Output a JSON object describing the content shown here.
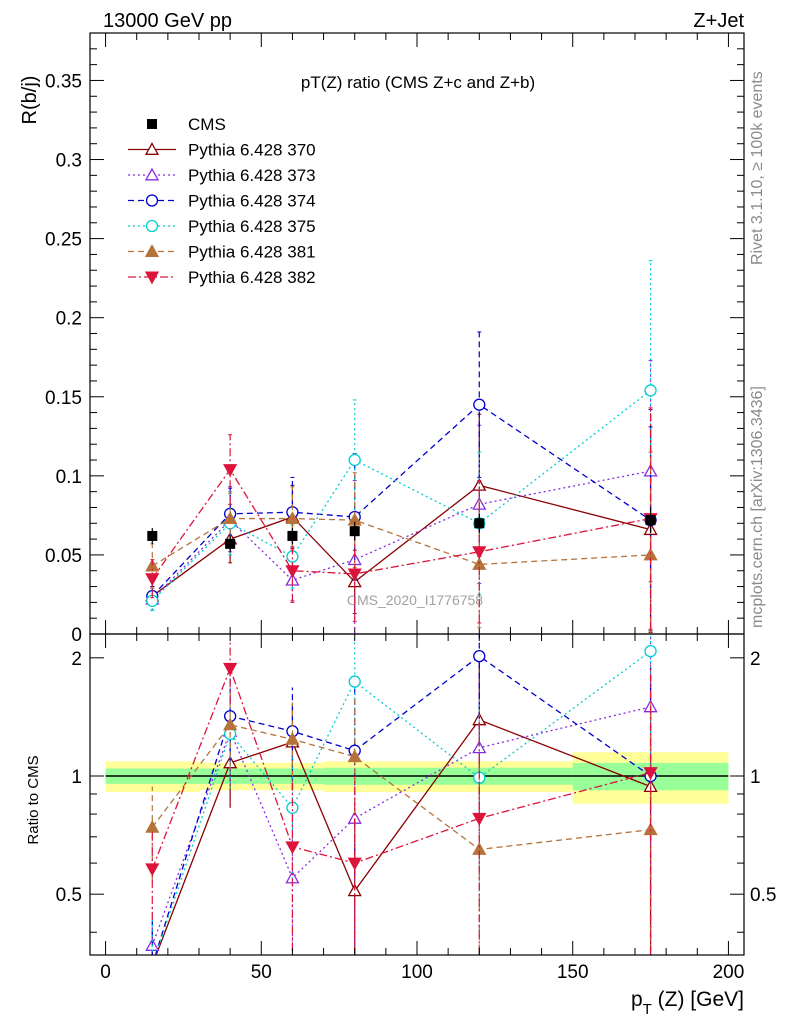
{
  "header": {
    "energy": "13000 GeV pp",
    "process": "Z+Jet",
    "title": "pT(Z) ratio (CMS  Z+c and Z+b)",
    "watermark": "CMS_2020_I1776758",
    "rivet": "Rivet 3.1.10, ≥ 100k events",
    "mcplots": "mcplots.cern.ch [arXiv:1306.3436]"
  },
  "chart_data": [
    {
      "type": "scatter",
      "panel": "main",
      "ylabel": "R(b/j)",
      "ylim": [
        0,
        0.38
      ],
      "yticks": [
        0,
        0.05,
        0.1,
        0.15,
        0.2,
        0.25,
        0.3,
        0.35
      ],
      "ytick_labels": [
        "0",
        "0.05",
        "0.1",
        "0.15",
        "0.2",
        "0.25",
        "0.3",
        "0.35"
      ],
      "xlim": [
        -5,
        205
      ],
      "x": [
        15,
        40,
        60,
        80,
        120,
        175
      ],
      "data": {
        "name": "CMS",
        "y": [
          0.062,
          0.057,
          0.062,
          0.065,
          0.07,
          0.072
        ],
        "err": [
          0.005,
          0.005,
          0.005,
          0.006,
          0.006,
          0.008
        ]
      },
      "series": [
        {
          "name": "Pythia 6.428 370",
          "color": "#8b0000",
          "marker": "triangle-up-open",
          "dash": "solid",
          "y": [
            0.024,
            0.06,
            0.074,
            0.033,
            0.094,
            0.066
          ],
          "err": [
            0.006,
            0.015,
            0.02,
            0.02,
            0.045,
            0.065
          ]
        },
        {
          "name": "Pythia 6.428 373",
          "color": "#8a2be2",
          "marker": "triangle-up-open",
          "dash": "dotted",
          "y": [
            0.022,
            0.072,
            0.034,
            0.047,
            0.082,
            0.103
          ],
          "err": [
            0.007,
            0.02,
            0.013,
            0.05,
            0.05,
            0.07
          ]
        },
        {
          "name": "Pythia 6.428 374",
          "color": "#0000cd",
          "marker": "circle-open",
          "dash": "dashed",
          "y": [
            0.024,
            0.076,
            0.077,
            0.074,
            0.145,
            0.072
          ],
          "err": [
            0.006,
            0.017,
            0.022,
            0.04,
            0.046,
            0.07
          ]
        },
        {
          "name": "Pythia 6.428 375",
          "color": "#00ced1",
          "marker": "circle-open",
          "dash": "dotted",
          "y": [
            0.021,
            0.07,
            0.049,
            0.11,
            0.07,
            0.154
          ],
          "err": [
            0.006,
            0.02,
            0.02,
            0.038,
            0.045,
            0.082
          ]
        },
        {
          "name": "Pythia 6.428 381",
          "color": "#b5733a",
          "marker": "triangle-up-filled",
          "dash": "dashed",
          "y": [
            0.043,
            0.073,
            0.073,
            0.072,
            0.044,
            0.05
          ],
          "err": [
            0.014,
            0.016,
            0.02,
            0.03,
            0.04,
            0.065
          ]
        },
        {
          "name": "Pythia 6.428 382",
          "color": "#dc143c",
          "marker": "triangle-down-filled",
          "dash": "dashdot",
          "y": [
            0.035,
            0.104,
            0.04,
            0.038,
            0.052,
            0.073
          ],
          "err": [
            0.012,
            0.022,
            0.02,
            0.03,
            0.045,
            0.07
          ]
        }
      ]
    },
    {
      "type": "scatter",
      "panel": "ratio",
      "ylabel": "Ratio to CMS",
      "ylim": [
        0.35,
        2.3
      ],
      "yticks": [
        0.5,
        1,
        2
      ],
      "ytick_labels": [
        "0.5",
        "1",
        "2"
      ],
      "xlabel_main": "p",
      "xlabel_sub": "T",
      "xlabel_rest": " (Z) [GeV]",
      "xlim": [
        -5,
        205
      ],
      "xticks": [
        0,
        50,
        100,
        150,
        200
      ],
      "xtick_labels": [
        "0",
        "50",
        "100",
        "150",
        "200"
      ],
      "bands": [
        {
          "x0": 0,
          "x1": 30,
          "inner": 0.045,
          "outer": 0.09
        },
        {
          "x0": 30,
          "x1": 50,
          "inner": 0.045,
          "outer": 0.08
        },
        {
          "x0": 50,
          "x1": 70,
          "inner": 0.045,
          "outer": 0.08
        },
        {
          "x0": 70,
          "x1": 100,
          "inner": 0.05,
          "outer": 0.09
        },
        {
          "x0": 100,
          "x1": 150,
          "inner": 0.05,
          "outer": 0.09
        },
        {
          "x0": 150,
          "x1": 200,
          "inner": 0.08,
          "outer": 0.15
        }
      ],
      "series": [
        {
          "name": "Pythia 6.428 370",
          "color": "#8b0000",
          "marker": "triangle-up-open",
          "dash": "solid",
          "y": [
            0.33,
            1.08,
            1.22,
            0.51,
            1.39,
            0.94
          ],
          "err": [
            0.08,
            0.25,
            0.3,
            0.3,
            0.6,
            0.85
          ]
        },
        {
          "name": "Pythia 6.428 373",
          "color": "#8a2be2",
          "marker": "triangle-up-open",
          "dash": "dotted",
          "y": [
            0.37,
            1.3,
            0.55,
            0.78,
            1.18,
            1.5
          ],
          "err": [
            0.1,
            0.35,
            0.25,
            0.7,
            0.6,
            1.0
          ]
        },
        {
          "name": "Pythia 6.428 374",
          "color": "#0000cd",
          "marker": "circle-open",
          "dash": "dashed",
          "y": [
            0.33,
            1.42,
            1.3,
            1.16,
            2.02,
            1.0
          ],
          "err": [
            0.1,
            0.35,
            0.38,
            0.6,
            0.7,
            0.9
          ]
        },
        {
          "name": "Pythia 6.428 375",
          "color": "#00ced1",
          "marker": "circle-open",
          "dash": "dotted",
          "y": [
            0.33,
            1.28,
            0.83,
            1.74,
            0.99,
            2.08
          ],
          "err": [
            0.1,
            0.35,
            0.3,
            0.5,
            0.6,
            1.0
          ]
        },
        {
          "name": "Pythia 6.428 381",
          "color": "#b5733a",
          "marker": "triangle-up-filled",
          "dash": "dashed",
          "y": [
            0.74,
            1.35,
            1.24,
            1.12,
            0.65,
            0.73
          ],
          "err": [
            0.2,
            0.3,
            0.3,
            0.45,
            0.5,
            0.8
          ]
        },
        {
          "name": "Pythia 6.428 382",
          "color": "#dc143c",
          "marker": "triangle-down-filled",
          "dash": "dashdot",
          "y": [
            0.58,
            1.88,
            0.66,
            0.6,
            0.78,
            1.02
          ],
          "err": [
            0.15,
            0.35,
            0.3,
            0.4,
            0.6,
            0.9
          ]
        }
      ]
    }
  ]
}
